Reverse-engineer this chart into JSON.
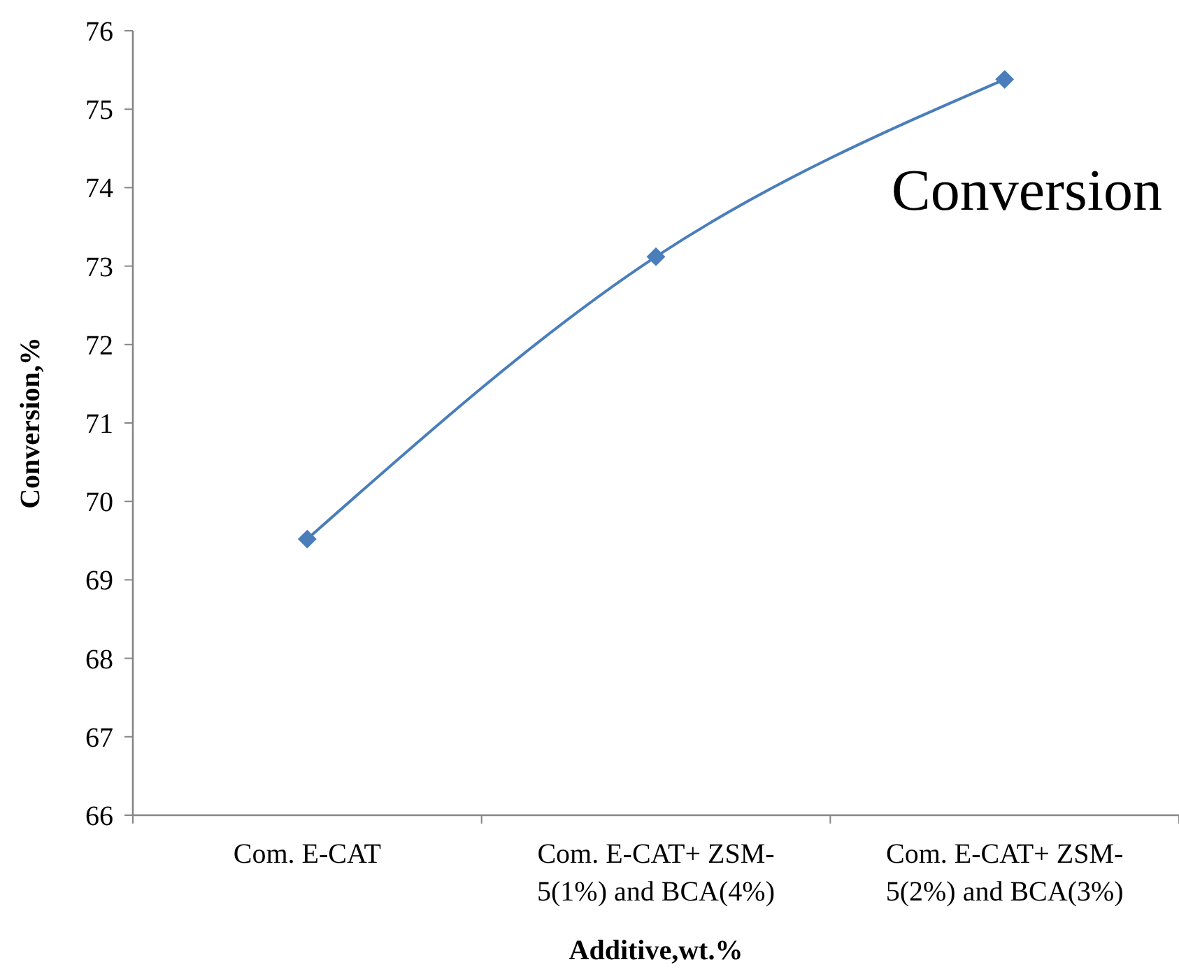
{
  "chart_data": {
    "type": "line",
    "xlabel": "Additive,wt.%",
    "ylabel": "Conversion,%",
    "categories": [
      "Com. E-CAT",
      "Com. E-CAT+ ZSM-5(1%) and BCA(4%)",
      "Com. E-CAT+ ZSM-5(2%) and BCA(3%)"
    ],
    "series": [
      {
        "name": "Conversion",
        "color": "#4a7ebb",
        "values": [
          69.52,
          73.12,
          75.38
        ]
      }
    ],
    "ylim": [
      66,
      76
    ],
    "yticks": [
      66,
      67,
      68,
      69,
      70,
      71,
      72,
      73,
      74,
      75,
      76
    ],
    "marker": "diamond",
    "line_style": "solid",
    "legend": "top right",
    "grid": false
  }
}
